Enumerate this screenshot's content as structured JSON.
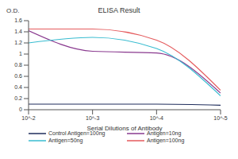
{
  "chart_data": {
    "type": "line",
    "title": "ELISA Result",
    "x_label": "Serial Dilutions of Antibody",
    "y_label": "O.D.",
    "x": [
      0.01,
      0.001,
      0.0001,
      1e-05
    ],
    "series": [
      {
        "name": "Control Antigen=100ng",
        "color": "#1f2d5c",
        "values": [
          0.1,
          0.1,
          0.1,
          0.08
        ]
      },
      {
        "name": "Antigen=10ng",
        "color": "#8a3a8f",
        "values": [
          1.42,
          1.05,
          1.02,
          0.3
        ]
      },
      {
        "name": "Antigen=50ng",
        "color": "#38bcd0",
        "values": [
          1.2,
          1.3,
          1.1,
          0.25
        ]
      },
      {
        "name": "Antigen=100ng",
        "color": "#e45a5c",
        "values": [
          1.45,
          1.45,
          1.25,
          0.35
        ]
      }
    ],
    "log": "x",
    "xlim": [
      0.01,
      1e-05
    ],
    "xticks": [
      {
        "value": 0.01,
        "label": "10^-2"
      },
      {
        "value": 0.001,
        "label": "10^-3"
      },
      {
        "value": 0.0001,
        "label": "10^-4"
      },
      {
        "value": 1e-05,
        "label": "10^-5"
      }
    ],
    "ylim": [
      0,
      1.6
    ],
    "yticks": [
      0,
      0.2,
      0.4,
      0.6,
      0.8,
      1,
      1.2,
      1.4,
      1.6
    ],
    "grid": false,
    "legend": "bottom"
  }
}
